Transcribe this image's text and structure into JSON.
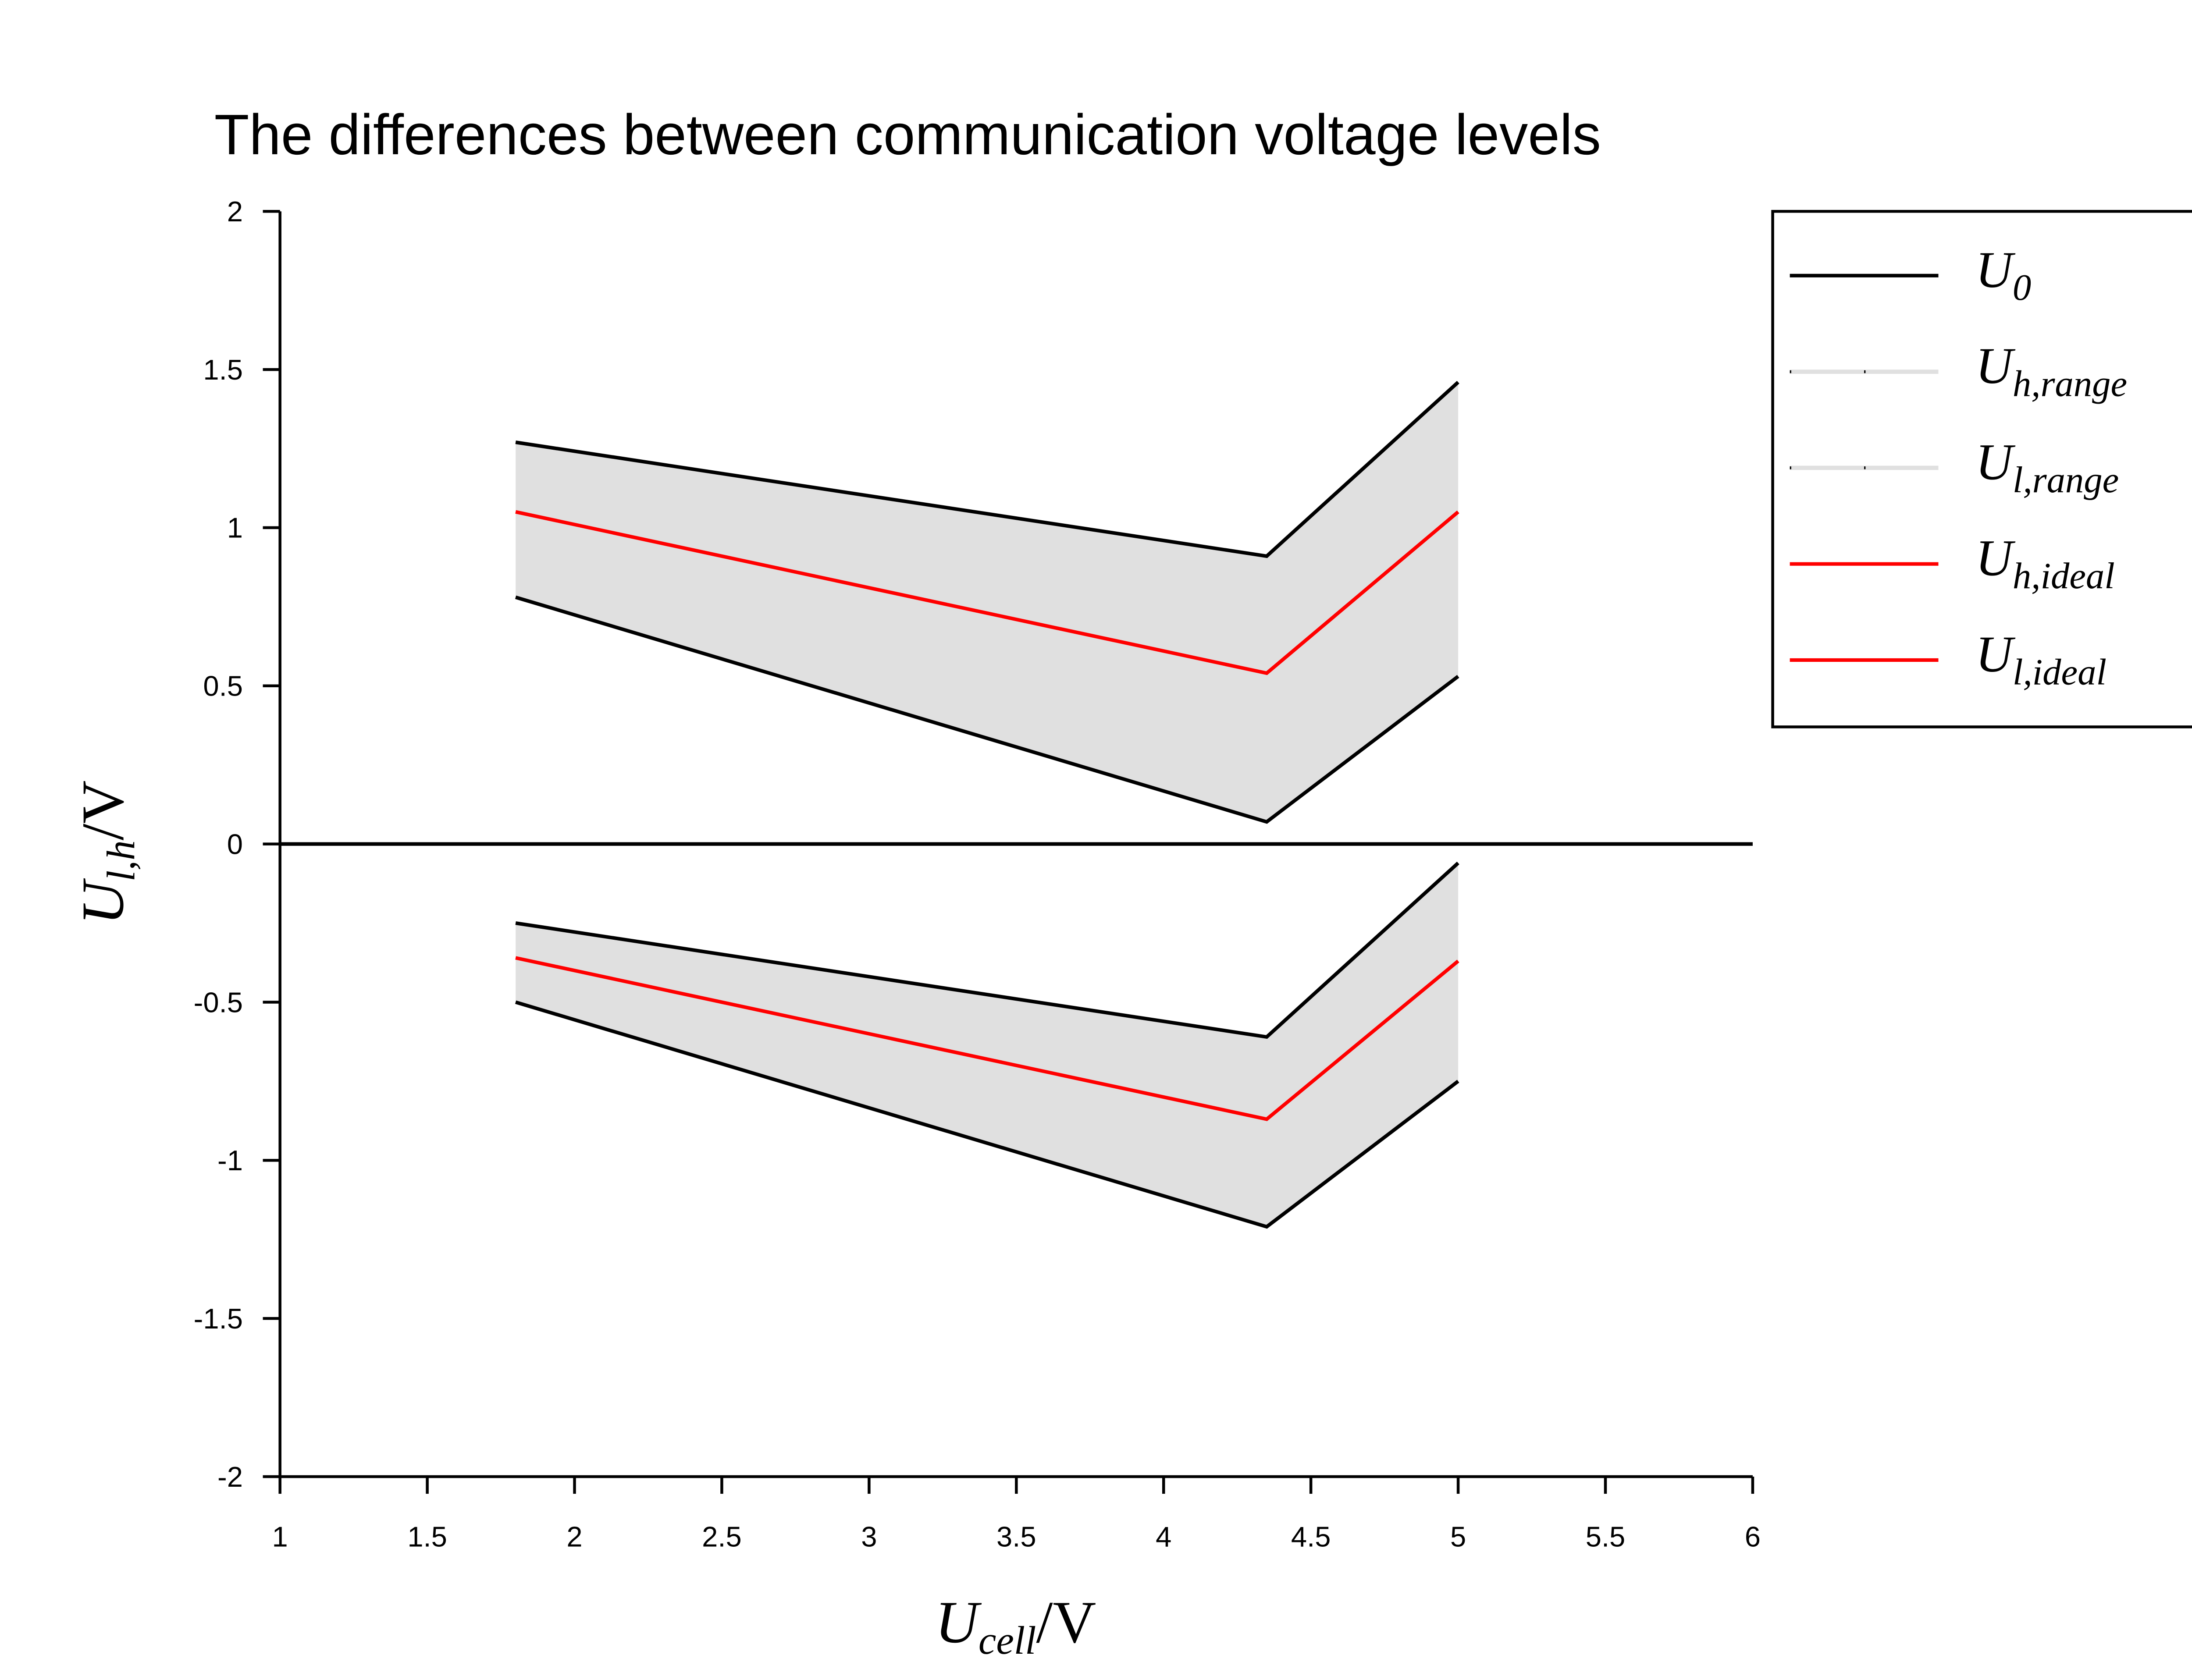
{
  "chart_data": {
    "type": "line",
    "title": "The differences between communication voltage levels",
    "xlabel": {
      "base": "U",
      "sub": "cell",
      "unit": "/V"
    },
    "ylabel": {
      "base": "U",
      "sub": "l,h",
      "unit": "/V"
    },
    "xlim": [
      1,
      6
    ],
    "xticks": [
      1,
      1.5,
      2,
      2.5,
      3,
      3.5,
      4,
      4.5,
      5,
      5.5,
      6
    ],
    "ylim": [
      -2,
      2
    ],
    "yticks": [
      -2,
      -1.5,
      -1,
      -0.5,
      0,
      0.5,
      1,
      1.5,
      2
    ],
    "legend": "outside-right",
    "series": [
      {
        "name": "U",
        "sub": "0",
        "kind": "line",
        "color": "#000000",
        "x": [
          1,
          6
        ],
        "values": [
          0,
          0
        ]
      },
      {
        "name": "U",
        "sub": "h,range",
        "kind": "band",
        "color": "#000000",
        "fill": "#e0e0e0",
        "x": [
          1.8,
          4.35,
          5
        ],
        "values": [
          1.27,
          0.91,
          1.46
        ],
        "lower": [
          0.78,
          0.07,
          0.53
        ]
      },
      {
        "name": "U",
        "sub": "l,range",
        "kind": "band",
        "color": "#000000",
        "fill": "#e0e0e0",
        "x": [
          1.8,
          4.35,
          5
        ],
        "values": [
          -0.25,
          -0.61,
          -0.06
        ],
        "lower": [
          -0.5,
          -1.21,
          -0.75
        ]
      },
      {
        "name": "U",
        "sub": "h,ideal",
        "kind": "line",
        "color": "#ff0000",
        "x": [
          1.8,
          4.35,
          5
        ],
        "values": [
          1.05,
          0.54,
          1.05
        ]
      },
      {
        "name": "U",
        "sub": "l,ideal",
        "kind": "line",
        "color": "#ff0000",
        "x": [
          1.8,
          4.35,
          5
        ],
        "values": [
          -0.36,
          -0.87,
          -0.37
        ]
      }
    ]
  }
}
